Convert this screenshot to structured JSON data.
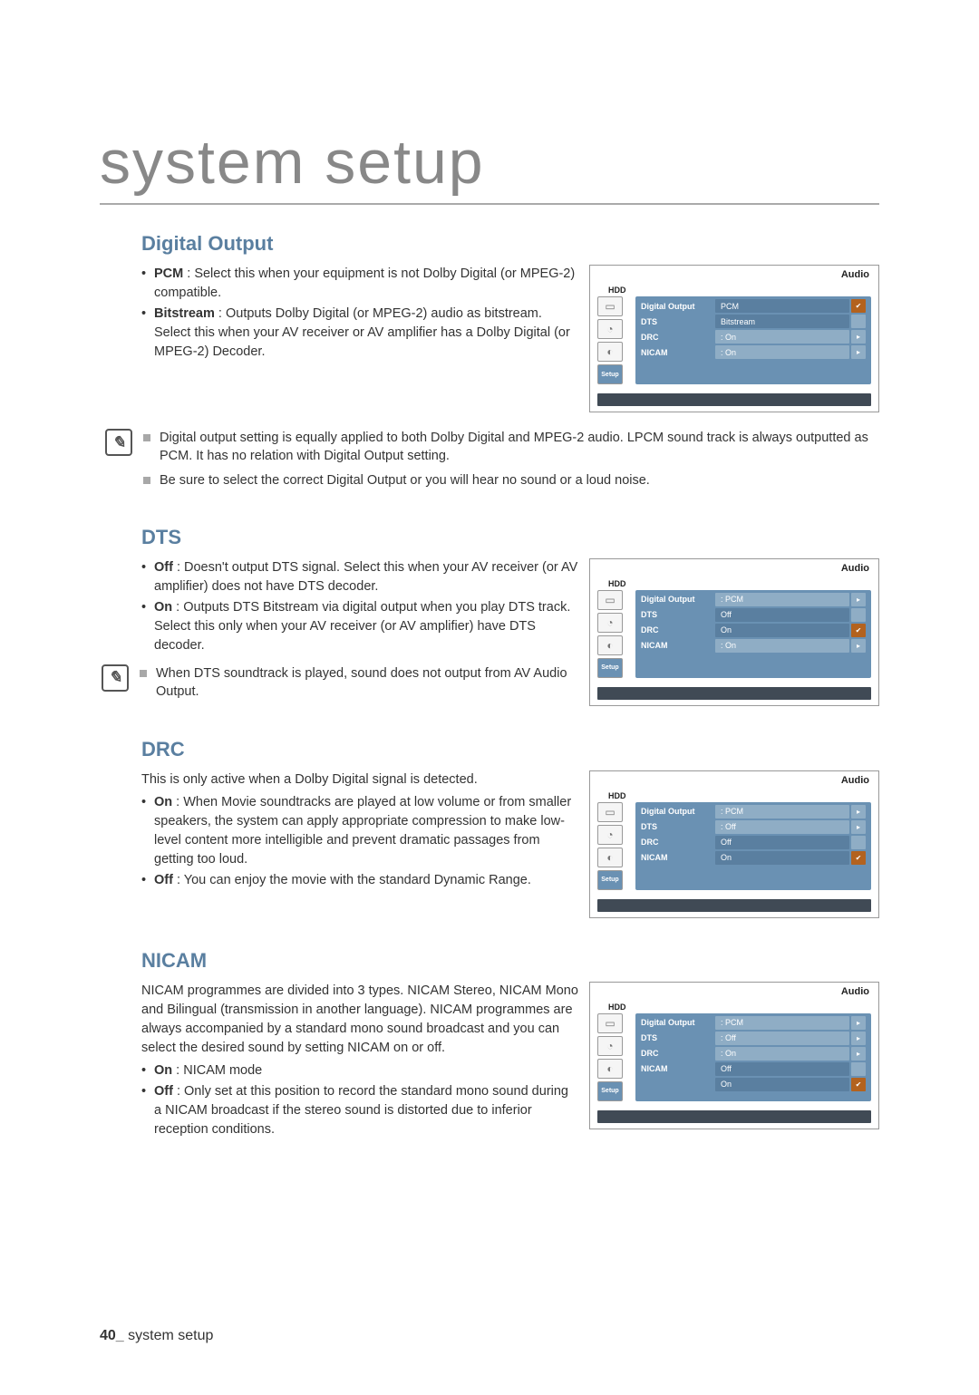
{
  "page": {
    "title": "system setup",
    "footer_page": "40_",
    "footer_text": "system setup"
  },
  "sections": {
    "digital_output": {
      "heading": "Digital Output",
      "pcm_label": "PCM",
      "pcm_text": " : Select this when your equipment is not Dolby Digital (or MPEG-2) compatible.",
      "bitstream_label": "Bitstream",
      "bitstream_text": " : Outputs Dolby Digital (or MPEG-2) audio as bitstream. Select this when your AV receiver or AV amplifier has a Dolby Digital (or MPEG-2) Decoder.",
      "note1": "Digital output setting is equally applied to both Dolby Digital and MPEG-2 audio. LPCM sound track is always outputted as PCM. It has no relation with Digital Output setting.",
      "note2": "Be sure to select the correct Digital Output or you will hear no sound or a loud noise."
    },
    "dts": {
      "heading": "DTS",
      "off_label": "Off",
      "off_text": " : Doesn't output DTS signal. Select this when your AV receiver (or AV amplifier) does not have DTS decoder.",
      "on_label": "On",
      "on_text": " : Outputs DTS Bitstream via digital output when you play DTS track. Select this only when your AV receiver (or AV amplifier) have DTS decoder.",
      "note1": "When DTS soundtrack is played, sound does not output from AV Audio Output."
    },
    "drc": {
      "heading": "DRC",
      "intro": "This is only active when a Dolby Digital signal is detected.",
      "on_label": "On",
      "on_text": " : When Movie soundtracks are played at low volume or from smaller speakers, the system can apply appropriate compression to make low-level content more intelligible and prevent dramatic passages from getting too loud.",
      "off_label": "Off",
      "off_text": " : You can enjoy the movie with the standard Dynamic Range."
    },
    "nicam": {
      "heading": "NICAM",
      "intro": "NICAM programmes are divided into 3 types. NICAM Stereo, NICAM Mono and Bilingual (transmission in another language). NICAM programmes are always accompanied by a standard mono sound broadcast and you can select the desired sound by setting NICAM on or off.",
      "on_label": "On",
      "on_text": " : NICAM mode",
      "off_label": "Off",
      "off_text": " : Only set at this position to record the standard mono sound during a NICAM broadcast if the stereo sound is distorted due to inferior reception conditions."
    }
  },
  "menu_common": {
    "title": "Audio",
    "hdd": "HDD",
    "labels": {
      "digital_output": "Digital Output",
      "dts": "DTS",
      "drc": "DRC",
      "nicam": "NICAM"
    },
    "setup": "Setup"
  },
  "menus": {
    "digital_output": {
      "rows": [
        {
          "label_key": "digital_output",
          "value": "PCM",
          "value_dark": true,
          "end": "✔",
          "end_hl": true
        },
        {
          "label_key": "dts",
          "value": "Bitstream",
          "value_dark": true,
          "end": "",
          "end_hl": false
        },
        {
          "label_key": "drc",
          "value": ": On",
          "value_dark": false,
          "end": "▸",
          "end_hl": false
        },
        {
          "label_key": "nicam",
          "value": ": On",
          "value_dark": false,
          "end": "▸",
          "end_hl": false
        }
      ]
    },
    "dts": {
      "rows": [
        {
          "label_key": "digital_output",
          "value": ": PCM",
          "value_dark": false,
          "end": "▸",
          "end_hl": false
        },
        {
          "label_key": "dts",
          "value": "Off",
          "value_dark": true,
          "end": "",
          "end_hl": false
        },
        {
          "label_key": "drc",
          "value": "On",
          "value_dark": true,
          "end": "✔",
          "end_hl": true
        },
        {
          "label_key": "nicam",
          "value": ": On",
          "value_dark": false,
          "end": "▸",
          "end_hl": false
        }
      ]
    },
    "drc": {
      "rows": [
        {
          "label_key": "digital_output",
          "value": ": PCM",
          "value_dark": false,
          "end": "▸",
          "end_hl": false
        },
        {
          "label_key": "dts",
          "value": ": Off",
          "value_dark": false,
          "end": "▸",
          "end_hl": false
        },
        {
          "label_key": "drc",
          "value": "Off",
          "value_dark": true,
          "end": "",
          "end_hl": false
        },
        {
          "label_key": "nicam",
          "value": "On",
          "value_dark": true,
          "end": "✔",
          "end_hl": true
        }
      ]
    },
    "nicam": {
      "rows": [
        {
          "label_key": "digital_output",
          "value": ": PCM",
          "value_dark": false,
          "end": "▸",
          "end_hl": false
        },
        {
          "label_key": "dts",
          "value": ": Off",
          "value_dark": false,
          "end": "▸",
          "end_hl": false
        },
        {
          "label_key": "drc",
          "value": ": On",
          "value_dark": false,
          "end": "▸",
          "end_hl": false
        },
        {
          "label_key": "nicam",
          "value": "Off",
          "value_dark": true,
          "end": "",
          "end_hl": false
        },
        {
          "label_key": "",
          "value": "On",
          "value_dark": true,
          "end": "✔",
          "end_hl": true,
          "spacer": true
        }
      ]
    }
  },
  "colors": {
    "heading": "#5a7fa0",
    "menu_bg": "#6a91b3",
    "menu_light": "#8fadc5",
    "menu_dark": "#5a7fa0",
    "highlight": "#b3621e",
    "foot": "#404a55",
    "title_grey": "#888888"
  }
}
